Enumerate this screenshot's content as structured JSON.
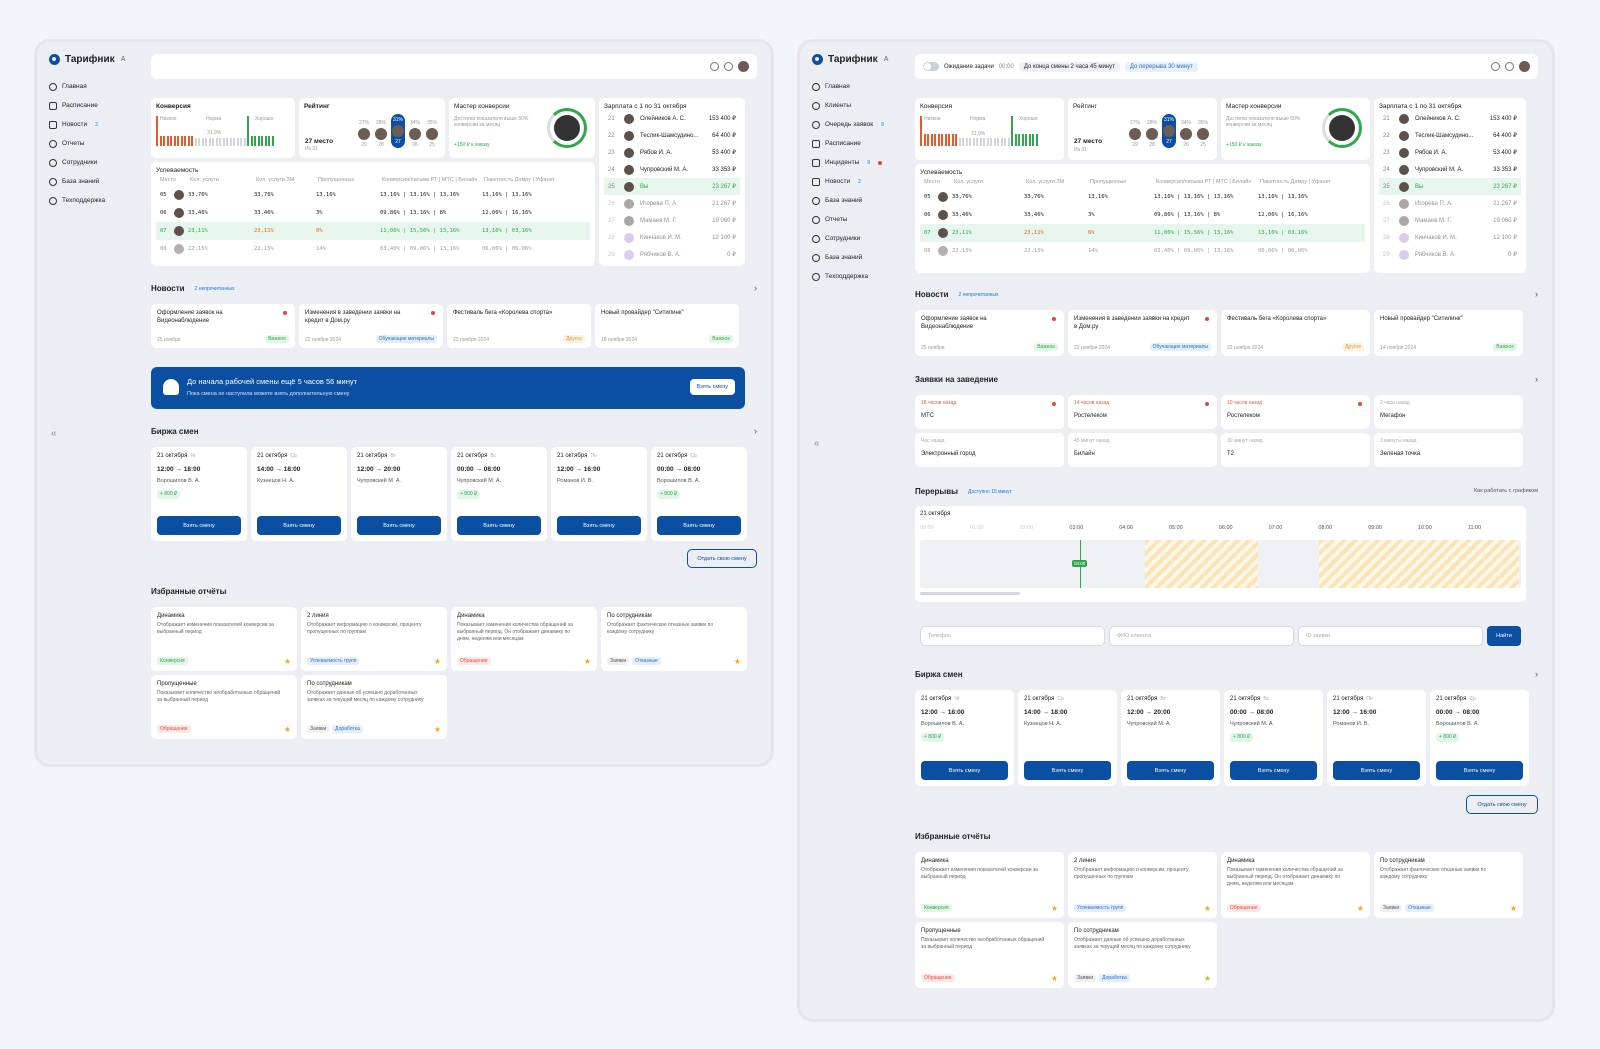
{
  "app": {
    "name": "Тарифник",
    "cap": "A"
  },
  "nav1": [
    {
      "label": "Главная"
    },
    {
      "label": "Расписание"
    },
    {
      "label": "Новости",
      "badge": "2"
    },
    {
      "label": "Отчеты"
    },
    {
      "label": "Сотрудники"
    },
    {
      "label": "База знаний"
    },
    {
      "label": "Техподдержка"
    }
  ],
  "nav2": [
    {
      "label": "Главная"
    },
    {
      "label": "Клиенты"
    },
    {
      "label": "Очередь заявок",
      "badge": "9"
    },
    {
      "label": "Расписание"
    },
    {
      "label": "Инциденты",
      "badge": "9"
    },
    {
      "label": "Новости",
      "badge": "2"
    },
    {
      "label": "База знаний"
    },
    {
      "label": "Отчеты"
    },
    {
      "label": "Сотрудники"
    },
    {
      "label": "База знаний"
    },
    {
      "label": "Техподдержка"
    }
  ],
  "collapse": "«",
  "topbar2": {
    "wait": "Ожидание задачи",
    "wait_time": "00:00",
    "shift_end": "До конца смены",
    "shift_end_time": "2 часа 45 минут",
    "break": "До перерыва",
    "break_time": "30 минут"
  },
  "conversion": {
    "title": "Конверсия",
    "norm1": "Низкое",
    "norm2": "Норма",
    "norm3": "Хорошо",
    "value": "31,9%"
  },
  "rating": {
    "title": "Рейтинг",
    "place": "27 место",
    "of": "Из 31",
    "tabs": [
      "27%",
      "28%",
      "31%",
      "34%",
      "35%"
    ],
    "labels": [
      "29",
      "28",
      "27",
      "26",
      "25"
    ]
  },
  "master": {
    "title": "Мастер конверсии",
    "desc": "Достигни показателя выше 50% конверсии за месяц",
    "bonus": "+150 ₽ к заказу"
  },
  "salary": {
    "title": "Зарплата с 1 по 31 октября",
    "rows": [
      {
        "n": "21",
        "name": "Олейников А. С.",
        "sum": "153 400 ₽"
      },
      {
        "n": "22",
        "name": "Теслик-Шамсудино...",
        "sum": "64 400 ₽"
      },
      {
        "n": "23",
        "name": "Рябов И. А.",
        "sum": "53 400 ₽"
      },
      {
        "n": "24",
        "name": "Чупровский М. А.",
        "sum": "33 353 ₽"
      },
      {
        "n": "25",
        "name": "Вы",
        "sum": "23 267 ₽"
      },
      {
        "n": "26",
        "name": "Игорева П. А.",
        "sum": "21 267 ₽"
      },
      {
        "n": "27",
        "name": "Мамаев М. Г.",
        "sum": "19 060 ₽"
      },
      {
        "n": "28",
        "name": "Кинчаков И. М.",
        "sum": "12 100 ₽"
      },
      {
        "n": "29",
        "name": "Рябчиков В. А.",
        "sum": "0 ₽"
      }
    ]
  },
  "perf": {
    "title": "Успеваемость",
    "headers": [
      "Место",
      "Кол. услуги",
      "Кол. услуги ЗМ",
      "Пропущенные",
      "Конверсия/письма РТ | МТС | Билайн",
      "Пакетность Домру | Уфанет"
    ],
    "rows": [
      {
        "n": "05",
        "a": "33,76%",
        "b": "33,76%",
        "c": "13,16%",
        "d": "13,16% | 13,16% | 13,16%",
        "e": "13,16% | 13,16%"
      },
      {
        "n": "06",
        "a": "33,46%",
        "b": "33,46%",
        "c": "3%",
        "d": "09,86% | 13,16% | 8%",
        "e": "12,06% | 16,16%"
      },
      {
        "n": "07",
        "a": "23,11%",
        "b": "23,11%",
        "c": "6%",
        "d": "11,06% | 15,56% | 13,16%",
        "e": "13,16% | 03,16%"
      },
      {
        "n": "08",
        "a": "22,15%",
        "b": "22,15%",
        "c": "14%",
        "d": "03,40% | 09,06% | 13,16%",
        "e": "06,06% | 06,06%"
      }
    ]
  },
  "news": {
    "title": "Новости",
    "unread": "2 непрочитанных",
    "items": [
      {
        "t": "Оформление заявок на Видеонаблюдение",
        "d": "25 ноября",
        "tag": "Важное"
      },
      {
        "t": "Изменения в заведении заявки на кредит в Дом.ру",
        "d": "22 ноября 2024",
        "tag": "Обучающие материалы"
      },
      {
        "t": "Фестиваль бега «Королева спорта»",
        "d": "22 ноября 2024",
        "tag": "Другое"
      },
      {
        "t": "Новый провайдер \"Ситилинк\"",
        "d": "18 ноября 2024",
        "tag": "Важное"
      }
    ],
    "date4b": "14 ноября 2024"
  },
  "banner": {
    "title": "До начала рабочей смены ещё 5 часов 56 минут",
    "sub": "Пока смена не наступила можете взять дополнительную смену",
    "btn": "Взять смену"
  },
  "requests": {
    "title": "Заявки на заведение",
    "items": [
      {
        "tm": "18 часов назад",
        "nm": "МТС"
      },
      {
        "tm": "14 часов назад",
        "nm": "Ростелеком"
      },
      {
        "tm": "10 часов назад",
        "nm": "Ростелеком"
      },
      {
        "tm": "2 часа назад",
        "nm": "Мегафон"
      },
      {
        "tm": "Час назад",
        "nm": "Электронный город"
      },
      {
        "tm": "45 минут назад",
        "nm": "Билайн"
      },
      {
        "tm": "30 минут назад",
        "nm": "Т2"
      },
      {
        "tm": "3 минуты назад",
        "nm": "Зеленая точка"
      }
    ]
  },
  "breaks": {
    "title": "Перерывы",
    "avail": "Доступно 15 минут",
    "help": "Как работать с графиком",
    "date": "21 октября",
    "now": "03:00",
    "hours": [
      "00:00",
      "01:00",
      "02:00",
      "03:00",
      "04:00",
      "05:00",
      "06:00",
      "07:00",
      "08:00",
      "09:00",
      "10:00",
      "11:00"
    ]
  },
  "search": {
    "phone": "Телефон",
    "fio": "ФИО клиента",
    "id": "ID заявки",
    "btn": "Найти"
  },
  "shifts": {
    "title": "Биржа смен",
    "take": "Взять смену",
    "give": "Отдать свою смену",
    "items": [
      {
        "d": "21 октября",
        "w": "Чт",
        "tm": "12:00 → 18:00",
        "nm": "Ворошилов В. А.",
        "bonus": "+ 800 ₽"
      },
      {
        "d": "21 октября",
        "w": "Ср",
        "tm": "14:00 → 18:00",
        "nm": "Кузнецов Н. А.",
        "bonus": ""
      },
      {
        "d": "21 октября",
        "w": "Вт",
        "tm": "12:00 → 20:00",
        "nm": "Чупровский М. А.",
        "bonus": ""
      },
      {
        "d": "21 октября",
        "w": "Вс",
        "tm": "00:00 → 08:00",
        "nm": "Чупровский М. А.",
        "bonus": "+ 800 ₽"
      },
      {
        "d": "21 октября",
        "w": "Пн",
        "tm": "12:00 → 16:00",
        "nm": "Романов И. В.",
        "bonus": ""
      },
      {
        "d": "21 октября",
        "w": "Ср",
        "tm": "00:00 → 08:00",
        "nm": "Ворошилов В. А.",
        "bonus": "+ 800 ₽"
      }
    ]
  },
  "reports": {
    "title": "Избранные отчёты",
    "items": [
      {
        "t": "Динамика",
        "ds": "Отображает изменения показателей конверсии за выбранный период",
        "tags": [
          "Конверсия"
        ]
      },
      {
        "t": "2 линия",
        "ds": "Отображает информацию о конверсии, проценту пропущенных по группам",
        "tags": [
          "Успеваемость групп"
        ]
      },
      {
        "t": "Динамика",
        "ds": "Показывает изменения количества обращений за выбранный период. Он отображает динамику по дням, неделям или месяцам",
        "tags": [
          "Обращение"
        ]
      },
      {
        "t": "По сотрудникам",
        "ds": "Отображает фактические отказные заявки по каждому сотруднику",
        "tags": [
          "Заявки",
          "Отказные"
        ]
      },
      {
        "t": "Пропущенные",
        "ds": "Показывает количество необработанных обращений за выбранный период",
        "tags": [
          "Обращение"
        ]
      },
      {
        "t": "По сотрудникам",
        "ds": "Отображает данные об успешно доработанных заявках за текущий месяц по каждому сотруднику",
        "tags": [
          "Заявки",
          "Доработка"
        ]
      }
    ]
  }
}
